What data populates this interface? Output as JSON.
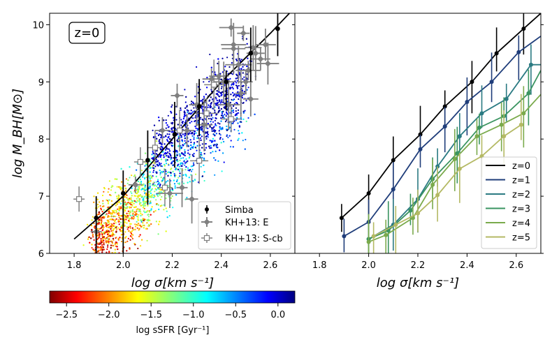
{
  "chart_data": [
    {
      "type": "scatter",
      "panel": "left",
      "annotation": "z=0",
      "xlabel": "log σ[km s⁻¹]",
      "ylabel": "log M_BH[M⊙]",
      "xlim": [
        1.7,
        2.7
      ],
      "ylim": [
        6.0,
        10.2
      ],
      "x_ticks": [
        "1.8",
        "2.0",
        "2.2",
        "2.4",
        "2.6"
      ],
      "y_ticks": [
        "6",
        "7",
        "8",
        "9",
        "10"
      ],
      "legend_position": "lower-right",
      "legend": [
        "Simba",
        "KH+13: E",
        "KH+13: S-cb"
      ],
      "colorbar": {
        "label": "log sSFR [Gyr⁻¹]",
        "range": [
          -2.7,
          0.2
        ],
        "ticks": [
          "−2.5",
          "−2.0",
          "−1.5",
          "−1.0",
          "−0.5",
          "0.0"
        ],
        "tick_values": [
          -2.5,
          -2.0,
          -1.5,
          -1.0,
          -0.5,
          0.0
        ],
        "colormap": "jet"
      },
      "simba_points": [
        {
          "x": 1.89,
          "y": 6.62,
          "lo": 5.85,
          "hi": 7.0
        },
        {
          "x": 2.0,
          "y": 7.05,
          "lo": 6.0,
          "hi": 7.45
        },
        {
          "x": 2.1,
          "y": 7.63,
          "lo": 6.85,
          "hi": 8.15
        },
        {
          "x": 2.21,
          "y": 8.08,
          "lo": 7.5,
          "hi": 8.65
        },
        {
          "x": 2.31,
          "y": 8.57,
          "lo": 8.05,
          "hi": 9.05
        },
        {
          "x": 2.42,
          "y": 9.0,
          "lo": 8.5,
          "hi": 9.2
        },
        {
          "x": 2.52,
          "y": 9.5,
          "lo": 9.0,
          "hi": 9.95
        },
        {
          "x": 2.63,
          "y": 9.93,
          "lo": 9.45,
          "hi": 10.3
        }
      ],
      "fit_line": [
        [
          1.8,
          6.25
        ],
        [
          2.0,
          7.0
        ],
        [
          2.2,
          8.0
        ],
        [
          2.4,
          9.0
        ],
        [
          2.6,
          9.85
        ],
        [
          2.7,
          10.3
        ]
      ],
      "kh13_elliptical": [
        {
          "x": 1.89,
          "y": 6.38
        },
        {
          "x": 2.22,
          "y": 8.76
        },
        {
          "x": 2.26,
          "y": 8.15
        },
        {
          "x": 2.3,
          "y": 8.6
        },
        {
          "x": 2.33,
          "y": 8.25
        },
        {
          "x": 2.36,
          "y": 9.05
        },
        {
          "x": 2.39,
          "y": 9.1
        },
        {
          "x": 2.41,
          "y": 9.0
        },
        {
          "x": 2.43,
          "y": 8.6
        },
        {
          "x": 2.44,
          "y": 9.95
        },
        {
          "x": 2.45,
          "y": 9.65
        },
        {
          "x": 2.47,
          "y": 9.3
        },
        {
          "x": 2.48,
          "y": 8.8
        },
        {
          "x": 2.49,
          "y": 9.85
        },
        {
          "x": 2.5,
          "y": 9.0
        },
        {
          "x": 2.52,
          "y": 8.7
        },
        {
          "x": 2.53,
          "y": 9.6
        },
        {
          "x": 2.54,
          "y": 9.5
        },
        {
          "x": 2.56,
          "y": 9.4
        },
        {
          "x": 2.58,
          "y": 9.65
        },
        {
          "x": 2.59,
          "y": 9.32
        },
        {
          "x": 2.45,
          "y": 9.58
        },
        {
          "x": 2.51,
          "y": 9.2
        },
        {
          "x": 2.19,
          "y": 7.05
        },
        {
          "x": 2.24,
          "y": 7.15
        },
        {
          "x": 2.28,
          "y": 6.95
        },
        {
          "x": 2.05,
          "y": 7.2
        },
        {
          "x": 2.16,
          "y": 8.15
        }
      ],
      "kh13_spiral_cb": [
        {
          "x": 1.82,
          "y": 6.95
        },
        {
          "x": 2.07,
          "y": 7.6
        },
        {
          "x": 2.13,
          "y": 7.85
        },
        {
          "x": 2.17,
          "y": 7.15
        },
        {
          "x": 2.23,
          "y": 8.15
        },
        {
          "x": 2.31,
          "y": 7.62
        },
        {
          "x": 2.37,
          "y": 8.95
        },
        {
          "x": 2.44,
          "y": 8.35
        },
        {
          "x": 2.34,
          "y": 8.45
        }
      ]
    },
    {
      "type": "line",
      "panel": "right",
      "xlabel": "log σ[km s⁻¹]",
      "xlim": [
        1.7,
        2.7
      ],
      "ylim": [
        6.0,
        10.2
      ],
      "x_ticks": [
        "1.8",
        "2.0",
        "2.2",
        "2.4",
        "2.6"
      ],
      "legend_position": "lower-right",
      "series": [
        {
          "name": "z=0",
          "color": "#000000",
          "x": [
            1.89,
            2.0,
            2.1,
            2.21,
            2.31,
            2.42,
            2.52,
            2.63,
            2.7
          ],
          "y": [
            6.62,
            7.05,
            7.63,
            8.08,
            8.57,
            9.0,
            9.5,
            9.93,
            10.2
          ],
          "marker_count": 8
        },
        {
          "name": "z=1",
          "color": "#1f3d7a",
          "x": [
            1.9,
            2.0,
            2.1,
            2.21,
            2.31,
            2.4,
            2.5,
            2.61,
            2.7
          ],
          "y": [
            6.3,
            6.55,
            7.12,
            7.82,
            8.22,
            8.65,
            9.0,
            9.52,
            9.8
          ],
          "marker_count": 8
        },
        {
          "name": "z=2",
          "color": "#2a7a82",
          "x": [
            2.0,
            2.1,
            2.2,
            2.28,
            2.37,
            2.46,
            2.56,
            2.66,
            2.7
          ],
          "y": [
            6.25,
            6.5,
            6.95,
            7.52,
            8.05,
            8.45,
            8.7,
            9.3,
            9.3
          ],
          "marker_count": 8
        },
        {
          "name": "z=3",
          "color": "#3a9460",
          "x": [
            2.0,
            2.08,
            2.17,
            2.26,
            2.36,
            2.45,
            2.55,
            2.65,
            2.7
          ],
          "y": [
            6.25,
            6.4,
            6.75,
            7.3,
            7.75,
            8.2,
            8.4,
            8.8,
            9.2
          ],
          "marker_count": 8
        },
        {
          "name": "z=4",
          "color": "#7aaa4c",
          "x": [
            2.0,
            2.07,
            2.18,
            2.26,
            2.35,
            2.44,
            2.54,
            2.63,
            2.7
          ],
          "y": [
            6.2,
            6.32,
            6.62,
            7.2,
            7.65,
            8.05,
            8.25,
            8.45,
            8.78
          ],
          "marker_count": 8
        },
        {
          "name": "z=5",
          "color": "#b4b964",
          "x": [
            2.02,
            2.11,
            2.2,
            2.28,
            2.37,
            2.46,
            2.55,
            2.62
          ],
          "y": [
            6.3,
            6.5,
            6.7,
            7.02,
            7.48,
            7.7,
            8.05,
            8.25
          ],
          "marker_count": 8
        }
      ]
    }
  ]
}
